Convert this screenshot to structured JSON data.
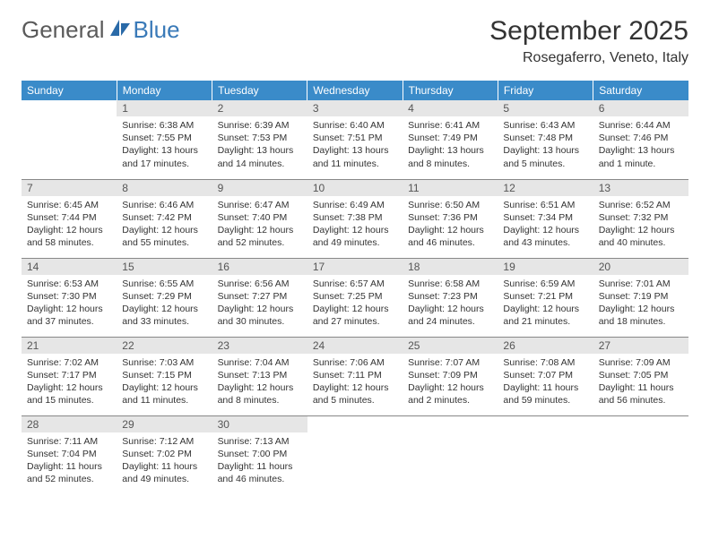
{
  "logo": {
    "text1": "General",
    "text2": "Blue"
  },
  "header": {
    "title": "September 2025",
    "location": "Rosegaferro, Veneto, Italy"
  },
  "colors": {
    "header_bg": "#3a8bc9",
    "header_text": "#ffffff",
    "daynum_bg": "#e6e6e6",
    "daynum_text": "#555555",
    "body_text": "#333333",
    "logo_gray": "#5a5a5a",
    "logo_blue": "#3a7ab8",
    "rule": "#888888"
  },
  "table": {
    "columns": [
      "Sunday",
      "Monday",
      "Tuesday",
      "Wednesday",
      "Thursday",
      "Friday",
      "Saturday"
    ],
    "rows": [
      [
        null,
        {
          "day": "1",
          "sunrise": "6:38 AM",
          "sunset": "7:55 PM",
          "daylight": "13 hours and 17 minutes."
        },
        {
          "day": "2",
          "sunrise": "6:39 AM",
          "sunset": "7:53 PM",
          "daylight": "13 hours and 14 minutes."
        },
        {
          "day": "3",
          "sunrise": "6:40 AM",
          "sunset": "7:51 PM",
          "daylight": "13 hours and 11 minutes."
        },
        {
          "day": "4",
          "sunrise": "6:41 AM",
          "sunset": "7:49 PM",
          "daylight": "13 hours and 8 minutes."
        },
        {
          "day": "5",
          "sunrise": "6:43 AM",
          "sunset": "7:48 PM",
          "daylight": "13 hours and 5 minutes."
        },
        {
          "day": "6",
          "sunrise": "6:44 AM",
          "sunset": "7:46 PM",
          "daylight": "13 hours and 1 minute."
        }
      ],
      [
        {
          "day": "7",
          "sunrise": "6:45 AM",
          "sunset": "7:44 PM",
          "daylight": "12 hours and 58 minutes."
        },
        {
          "day": "8",
          "sunrise": "6:46 AM",
          "sunset": "7:42 PM",
          "daylight": "12 hours and 55 minutes."
        },
        {
          "day": "9",
          "sunrise": "6:47 AM",
          "sunset": "7:40 PM",
          "daylight": "12 hours and 52 minutes."
        },
        {
          "day": "10",
          "sunrise": "6:49 AM",
          "sunset": "7:38 PM",
          "daylight": "12 hours and 49 minutes."
        },
        {
          "day": "11",
          "sunrise": "6:50 AM",
          "sunset": "7:36 PM",
          "daylight": "12 hours and 46 minutes."
        },
        {
          "day": "12",
          "sunrise": "6:51 AM",
          "sunset": "7:34 PM",
          "daylight": "12 hours and 43 minutes."
        },
        {
          "day": "13",
          "sunrise": "6:52 AM",
          "sunset": "7:32 PM",
          "daylight": "12 hours and 40 minutes."
        }
      ],
      [
        {
          "day": "14",
          "sunrise": "6:53 AM",
          "sunset": "7:30 PM",
          "daylight": "12 hours and 37 minutes."
        },
        {
          "day": "15",
          "sunrise": "6:55 AM",
          "sunset": "7:29 PM",
          "daylight": "12 hours and 33 minutes."
        },
        {
          "day": "16",
          "sunrise": "6:56 AM",
          "sunset": "7:27 PM",
          "daylight": "12 hours and 30 minutes."
        },
        {
          "day": "17",
          "sunrise": "6:57 AM",
          "sunset": "7:25 PM",
          "daylight": "12 hours and 27 minutes."
        },
        {
          "day": "18",
          "sunrise": "6:58 AM",
          "sunset": "7:23 PM",
          "daylight": "12 hours and 24 minutes."
        },
        {
          "day": "19",
          "sunrise": "6:59 AM",
          "sunset": "7:21 PM",
          "daylight": "12 hours and 21 minutes."
        },
        {
          "day": "20",
          "sunrise": "7:01 AM",
          "sunset": "7:19 PM",
          "daylight": "12 hours and 18 minutes."
        }
      ],
      [
        {
          "day": "21",
          "sunrise": "7:02 AM",
          "sunset": "7:17 PM",
          "daylight": "12 hours and 15 minutes."
        },
        {
          "day": "22",
          "sunrise": "7:03 AM",
          "sunset": "7:15 PM",
          "daylight": "12 hours and 11 minutes."
        },
        {
          "day": "23",
          "sunrise": "7:04 AM",
          "sunset": "7:13 PM",
          "daylight": "12 hours and 8 minutes."
        },
        {
          "day": "24",
          "sunrise": "7:06 AM",
          "sunset": "7:11 PM",
          "daylight": "12 hours and 5 minutes."
        },
        {
          "day": "25",
          "sunrise": "7:07 AM",
          "sunset": "7:09 PM",
          "daylight": "12 hours and 2 minutes."
        },
        {
          "day": "26",
          "sunrise": "7:08 AM",
          "sunset": "7:07 PM",
          "daylight": "11 hours and 59 minutes."
        },
        {
          "day": "27",
          "sunrise": "7:09 AM",
          "sunset": "7:05 PM",
          "daylight": "11 hours and 56 minutes."
        }
      ],
      [
        {
          "day": "28",
          "sunrise": "7:11 AM",
          "sunset": "7:04 PM",
          "daylight": "11 hours and 52 minutes."
        },
        {
          "day": "29",
          "sunrise": "7:12 AM",
          "sunset": "7:02 PM",
          "daylight": "11 hours and 49 minutes."
        },
        {
          "day": "30",
          "sunrise": "7:13 AM",
          "sunset": "7:00 PM",
          "daylight": "11 hours and 46 minutes."
        },
        null,
        null,
        null,
        null
      ]
    ]
  },
  "labels": {
    "sunrise": "Sunrise:",
    "sunset": "Sunset:",
    "daylight": "Daylight:"
  }
}
